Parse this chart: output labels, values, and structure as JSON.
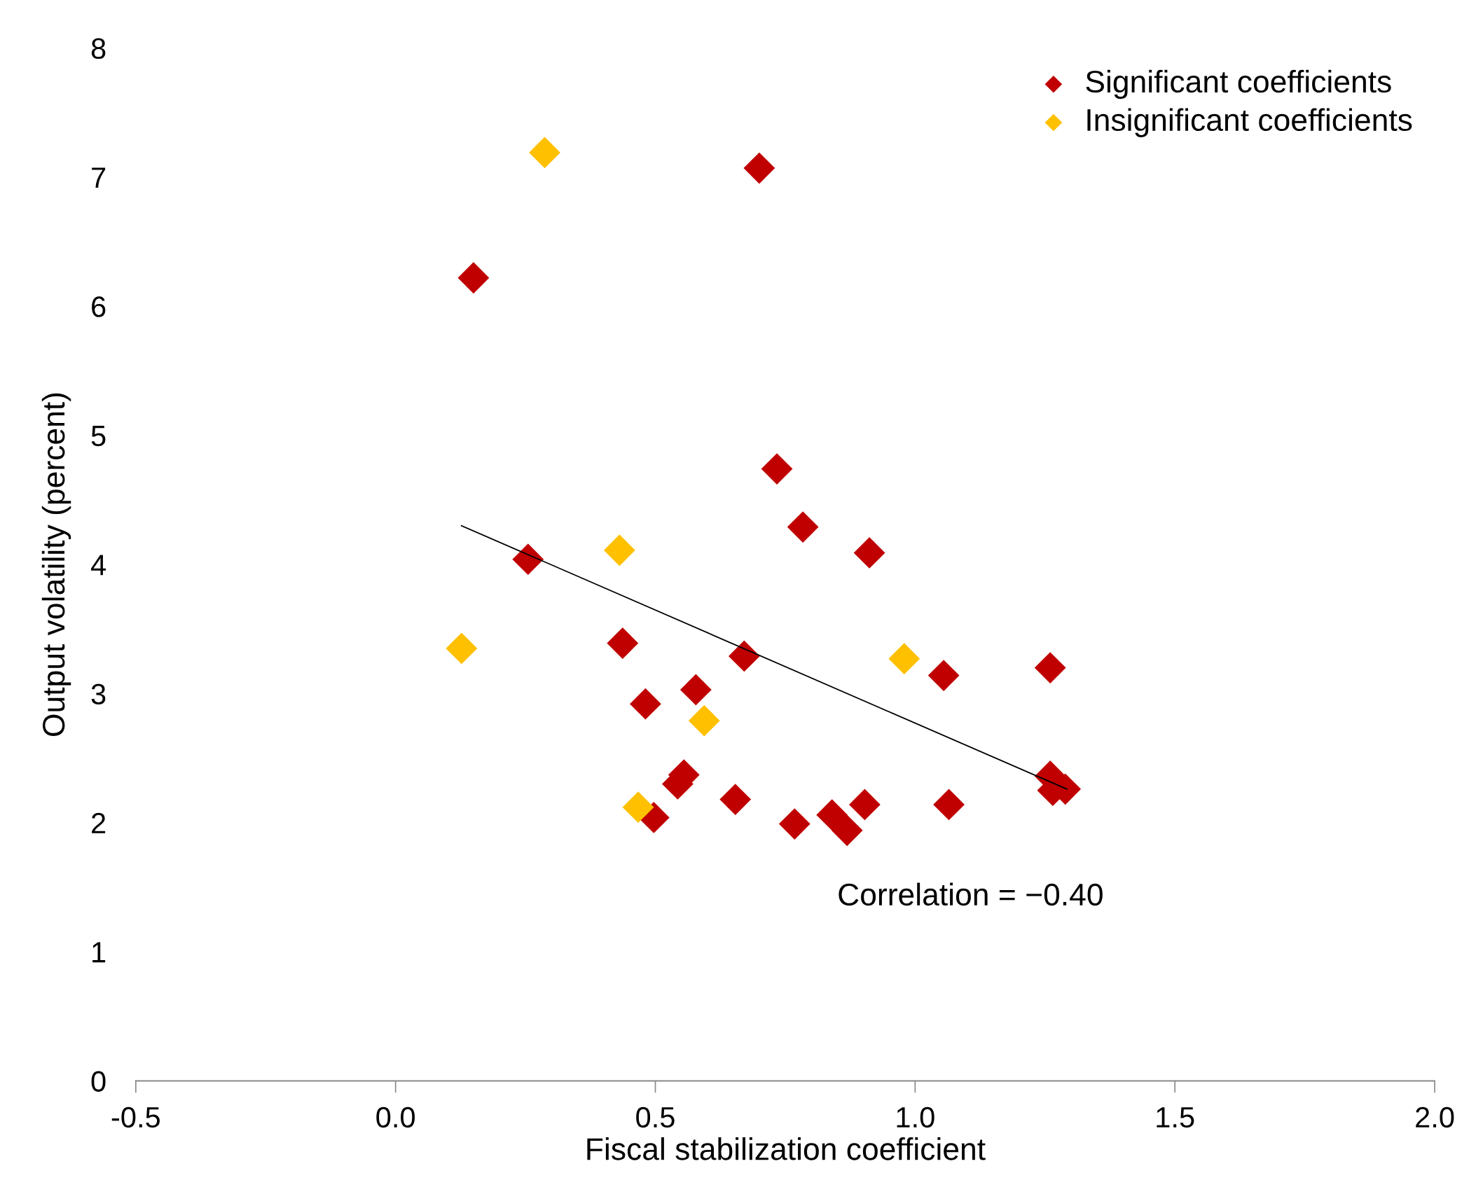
{
  "chart_data": {
    "type": "scatter",
    "xlabel": "Fiscal stabilization coefficient",
    "ylabel": "Output volatility (percent)",
    "xlim": [
      -0.5,
      2.0
    ],
    "xticks": [
      {
        "value": -0.5,
        "label": "-0.5"
      },
      {
        "value": 0,
        "label": "0.0"
      },
      {
        "value": 0.5,
        "label": "0.5"
      },
      {
        "value": 1,
        "label": "1.0"
      },
      {
        "value": 1.5,
        "label": "1.5"
      },
      {
        "value": 2,
        "label": "2.0"
      }
    ],
    "ylim": [
      0,
      8
    ],
    "yticks": [
      0,
      1,
      2,
      3,
      4,
      5,
      6,
      7,
      8
    ],
    "grid": false,
    "legend": "top right",
    "marker": "diamond",
    "annotations": [
      "Correlation = −0.40"
    ],
    "series": [
      {
        "name": "Significant coefficients",
        "color": "#c00000",
        "x": [
          0.15,
          0.7,
          0.255,
          0.734,
          0.784,
          0.912,
          0.437,
          0.671,
          0.578,
          0.481,
          1.055,
          1.26,
          0.555,
          0.543,
          0.654,
          0.497,
          0.768,
          0.84,
          0.869,
          0.903,
          1.065,
          1.26,
          1.265,
          1.289
        ],
        "values": [
          6.22,
          7.07,
          4.04,
          4.74,
          4.29,
          4.09,
          3.39,
          3.29,
          3.03,
          2.92,
          3.14,
          3.2,
          2.37,
          2.3,
          2.18,
          2.04,
          1.99,
          2.06,
          1.94,
          2.14,
          2.14,
          2.36,
          2.25,
          2.26
        ]
      },
      {
        "name": "Insignificant coefficients",
        "color": "#ffc000",
        "x": [
          0.287,
          0.431,
          0.127,
          0.979,
          0.594,
          0.467
        ],
        "values": [
          7.19,
          4.11,
          3.35,
          3.27,
          2.79,
          2.12
        ]
      },
      {
        "type": "line",
        "color": "#000000",
        "x": [
          0.127,
          1.292
        ],
        "values": [
          4.3,
          2.26
        ],
        "marker": "none"
      }
    ]
  }
}
